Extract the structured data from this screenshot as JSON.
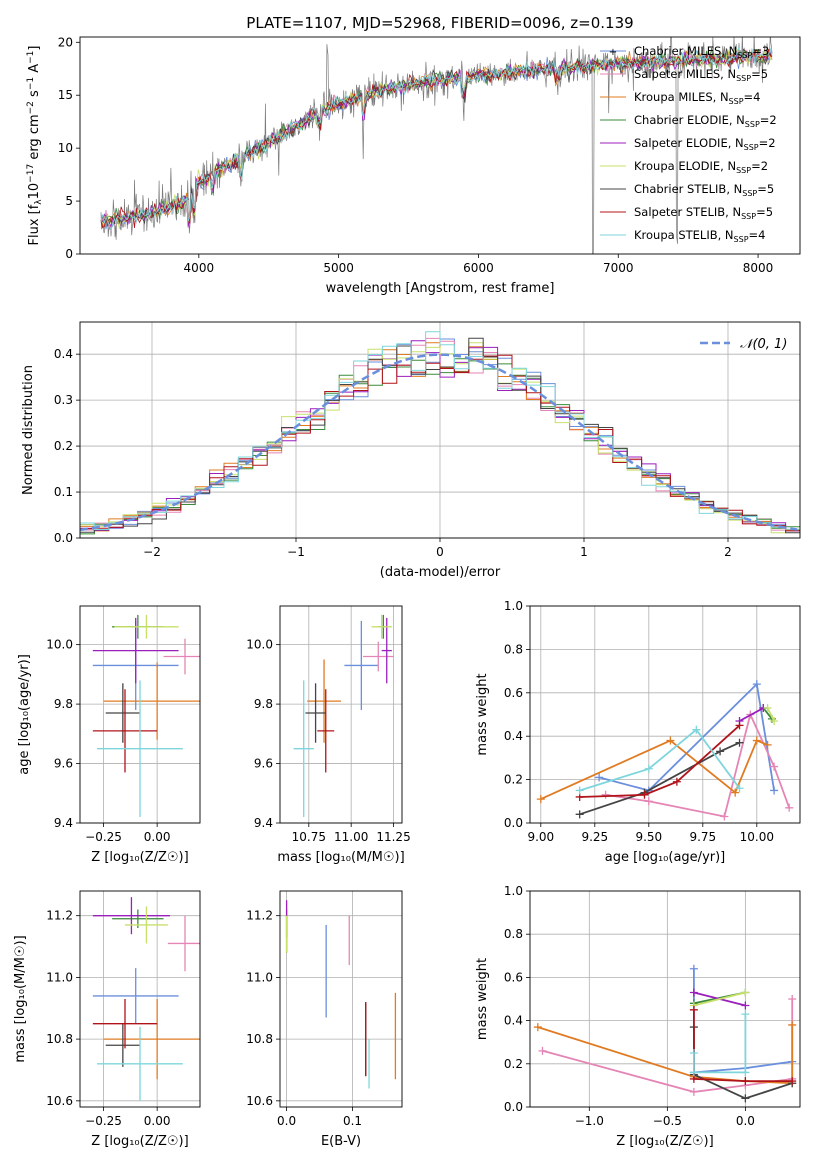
{
  "title": "PLATE=1107, MJD=52968, FIBERID=0096, z=0.139",
  "colors": {
    "c1": "#6a8fdc",
    "c2": "#e585b5",
    "c3": "#e07b22",
    "c4": "#3b8a3b",
    "c5": "#9b1fbd",
    "c6": "#c7e06a",
    "c7": "#444444",
    "c8": "#b0141a",
    "c9": "#7ed6dc"
  },
  "chart_data": [
    {
      "id": "spectrum",
      "type": "line",
      "xlabel": "wavelength [Angstrom, rest frame]",
      "ylabel_parts": [
        "Flux [f",
        "λ",
        "10",
        "−17",
        " erg cm",
        "−2",
        " s",
        "−1",
        " A",
        "−1",
        "]"
      ],
      "xlim": [
        3150,
        8300
      ],
      "ylim": [
        0,
        20.5
      ],
      "xticks": [
        4000,
        5000,
        6000,
        7000,
        8000
      ],
      "yticks": [
        0,
        5,
        10,
        15,
        20
      ],
      "continuum": [
        [
          3300,
          3.1
        ],
        [
          3600,
          3.6
        ],
        [
          3900,
          5.0
        ],
        [
          4000,
          6.8
        ],
        [
          4200,
          8.3
        ],
        [
          4500,
          10.5
        ],
        [
          4800,
          13.0
        ],
        [
          5000,
          14.2
        ],
        [
          5300,
          15.5
        ],
        [
          5600,
          16.2
        ],
        [
          6000,
          16.9
        ],
        [
          6500,
          17.5
        ],
        [
          7000,
          18.0
        ],
        [
          7500,
          18.3
        ],
        [
          8000,
          18.7
        ],
        [
          8100,
          18.8
        ]
      ],
      "legend": [
        {
          "label": "Chabrier MILES, N",
          "sub": "SSP",
          "tail": "=3",
          "color": "c1"
        },
        {
          "label": "Salpeter MILES, N",
          "sub": "SSP",
          "tail": "=5",
          "color": "c2"
        },
        {
          "label": "Kroupa MILES, N",
          "sub": "SSP",
          "tail": "=4",
          "color": "c3"
        },
        {
          "label": "Chabrier ELODIE, N",
          "sub": "SSP",
          "tail": "=2",
          "color": "c4"
        },
        {
          "label": "Salpeter ELODIE, N",
          "sub": "SSP",
          "tail": "=2",
          "color": "c5"
        },
        {
          "label": "Kroupa ELODIE, N",
          "sub": "SSP",
          "tail": "=2",
          "color": "c6"
        },
        {
          "label": "Chabrier STELIB, N",
          "sub": "SSP",
          "tail": "=5",
          "color": "c7"
        },
        {
          "label": "Salpeter STELIB, N",
          "sub": "SSP",
          "tail": "=5",
          "color": "c8"
        },
        {
          "label": "Kroupa STELIB, N",
          "sub": "SSP",
          "tail": "=4",
          "color": "c9"
        }
      ]
    },
    {
      "id": "residuals",
      "type": "histogram",
      "xlabel": "(data-model)/error",
      "ylabel": "Normed distribution",
      "xlim": [
        -2.5,
        2.5
      ],
      "ylim": [
        0,
        0.47
      ],
      "xticks": [
        -2,
        -1,
        0,
        1,
        2
      ],
      "yticks": [
        0.0,
        0.1,
        0.2,
        0.3,
        0.4
      ],
      "bin_width": 0.1,
      "series_colors": [
        "c1",
        "c2",
        "c3",
        "c4",
        "c5",
        "c6",
        "c7",
        "c8",
        "c9"
      ],
      "legend": {
        "label": "𝒩(0, 1)",
        "color": "c1"
      }
    },
    {
      "id": "age-vs-Z",
      "type": "errorbar",
      "xlabel": "Z [log₁₀(Z/Z☉)]",
      "ylabel": "age  [log₁₀(age/yr)]",
      "xlim": [
        -0.36,
        0.2
      ],
      "ylim": [
        9.4,
        10.13
      ],
      "xticks": [
        -0.25,
        0.0
      ],
      "yticks": [
        9.4,
        9.6,
        9.8,
        10.0
      ],
      "points": [
        {
          "c": "c1",
          "x": -0.1,
          "xe": 0.2,
          "y": 9.93,
          "ye": 0.15
        },
        {
          "c": "c2",
          "x": 0.13,
          "xe": 0.1,
          "y": 9.96,
          "ye": 0.06
        },
        {
          "c": "c3",
          "x": 0.0,
          "xe": 0.25,
          "y": 9.81,
          "ye": 0.13
        },
        {
          "c": "c4",
          "x": -0.09,
          "xe": 0.12,
          "y": 10.06,
          "ye": 0.04
        },
        {
          "c": "c5",
          "x": -0.1,
          "xe": 0.2,
          "y": 9.98,
          "ye": 0.11
        },
        {
          "c": "c6",
          "x": -0.05,
          "xe": 0.15,
          "y": 10.06,
          "ye": 0.04
        },
        {
          "c": "c7",
          "x": -0.16,
          "xe": 0.08,
          "y": 9.77,
          "ye": 0.1
        },
        {
          "c": "c8",
          "x": -0.15,
          "xe": 0.15,
          "y": 9.71,
          "ye": 0.14
        },
        {
          "c": "c9",
          "x": -0.08,
          "xe": 0.2,
          "y": 9.65,
          "ye": 0.23
        }
      ]
    },
    {
      "id": "age-vs-mass",
      "type": "errorbar",
      "xlabel": "mass [log₁₀(M/M☉)]",
      "ylabel": "",
      "xlim": [
        10.58,
        11.3
      ],
      "ylim": [
        9.4,
        10.13
      ],
      "xticks": [
        10.75,
        11.0,
        11.25
      ],
      "yticks": [
        9.4,
        9.6,
        9.8,
        10.0
      ],
      "points": [
        {
          "c": "c1",
          "x": 11.06,
          "xe": 0.1,
          "y": 9.93,
          "ye": 0.15
        },
        {
          "c": "c2",
          "x": 11.16,
          "xe": 0.09,
          "y": 9.96,
          "ye": 0.05
        },
        {
          "c": "c3",
          "x": 10.84,
          "xe": 0.1,
          "y": 9.81,
          "ye": 0.14
        },
        {
          "c": "c4",
          "x": 11.19,
          "xe": 0.03,
          "y": 10.06,
          "ye": 0.04
        },
        {
          "c": "c5",
          "x": 11.21,
          "xe": 0.03,
          "y": 9.98,
          "ye": 0.11
        },
        {
          "c": "c6",
          "x": 11.18,
          "xe": 0.06,
          "y": 10.06,
          "ye": 0.04
        },
        {
          "c": "c7",
          "x": 10.79,
          "xe": 0.06,
          "y": 9.77,
          "ye": 0.1
        },
        {
          "c": "c8",
          "x": 10.85,
          "xe": 0.05,
          "y": 9.71,
          "ye": 0.14
        },
        {
          "c": "c9",
          "x": 10.72,
          "xe": 0.06,
          "y": 9.65,
          "ye": 0.23
        }
      ]
    },
    {
      "id": "weight-vs-age",
      "type": "line",
      "xlabel": "age  [log₁₀(age/yr)]",
      "ylabel": "mass weight",
      "xlim": [
        8.95,
        10.2
      ],
      "ylim": [
        0,
        1.0
      ],
      "xticks": [
        9.0,
        9.25,
        9.5,
        9.75,
        10.0
      ],
      "yticks": [
        0.0,
        0.2,
        0.4,
        0.6,
        0.8,
        1.0
      ],
      "series": [
        {
          "c": "c1",
          "x": [
            9.27,
            9.5,
            10.0,
            10.08
          ],
          "y": [
            0.21,
            0.15,
            0.64,
            0.15
          ]
        },
        {
          "c": "c2",
          "x": [
            9.3,
            9.5,
            9.85,
            9.97,
            10.08,
            10.15
          ],
          "y": [
            0.13,
            0.1,
            0.03,
            0.5,
            0.26,
            0.07
          ]
        },
        {
          "c": "c3",
          "x": [
            9.0,
            9.6,
            9.9,
            10.0,
            10.05
          ],
          "y": [
            0.11,
            0.38,
            0.14,
            0.38,
            0.36
          ]
        },
        {
          "c": "c4",
          "x": [
            10.03,
            10.07
          ],
          "y": [
            0.53,
            0.48
          ]
        },
        {
          "c": "c5",
          "x": [
            9.92,
            10.03
          ],
          "y": [
            0.47,
            0.53
          ]
        },
        {
          "c": "c6",
          "x": [
            10.05,
            10.08
          ],
          "y": [
            0.53,
            0.47
          ]
        },
        {
          "c": "c7",
          "x": [
            9.18,
            9.48,
            9.83,
            9.92
          ],
          "y": [
            0.04,
            0.14,
            0.33,
            0.37
          ]
        },
        {
          "c": "c8",
          "x": [
            9.18,
            9.48,
            9.63,
            9.92
          ],
          "y": [
            0.12,
            0.13,
            0.19,
            0.45
          ]
        },
        {
          "c": "c9",
          "x": [
            9.18,
            9.5,
            9.72,
            9.92
          ],
          "y": [
            0.15,
            0.25,
            0.43,
            0.16
          ]
        }
      ]
    },
    {
      "id": "mass-vs-Z",
      "type": "errorbar",
      "xlabel": "Z [log₁₀(Z/Z☉)]",
      "ylabel": "mass [log₁₀(M/M☉)]",
      "xlim": [
        -0.36,
        0.2
      ],
      "ylim": [
        10.58,
        11.28
      ],
      "xticks": [
        -0.25,
        0.0
      ],
      "yticks": [
        10.6,
        10.8,
        11.0,
        11.2
      ],
      "points": [
        {
          "c": "c1",
          "x": -0.1,
          "xe": 0.2,
          "y": 10.94,
          "ye": 0.09
        },
        {
          "c": "c2",
          "x": 0.13,
          "xe": 0.08,
          "y": 11.11,
          "ye": 0.09
        },
        {
          "c": "c3",
          "x": 0.0,
          "xe": 0.25,
          "y": 10.8,
          "ye": 0.13
        },
        {
          "c": "c4",
          "x": -0.09,
          "xe": 0.12,
          "y": 11.19,
          "ye": 0.03
        },
        {
          "c": "c5",
          "x": -0.12,
          "xe": 0.18,
          "y": 11.2,
          "ye": 0.06
        },
        {
          "c": "c6",
          "x": -0.05,
          "xe": 0.1,
          "y": 11.17,
          "ye": 0.06
        },
        {
          "c": "c7",
          "x": -0.16,
          "xe": 0.08,
          "y": 10.78,
          "ye": 0.07
        },
        {
          "c": "c8",
          "x": -0.15,
          "xe": 0.15,
          "y": 10.85,
          "ye": 0.08
        },
        {
          "c": "c9",
          "x": -0.08,
          "xe": 0.2,
          "y": 10.72,
          "ye": 0.12
        }
      ]
    },
    {
      "id": "mass-vs-ebv",
      "type": "errorbar",
      "xlabel": "E(B-V)",
      "ylabel": "",
      "xlim": [
        -0.01,
        0.175
      ],
      "ylim": [
        10.58,
        11.28
      ],
      "xticks": [
        0.0,
        0.1
      ],
      "yticks": [
        10.6,
        10.8,
        11.0,
        11.2
      ],
      "points": [
        {
          "c": "c1",
          "x": 0.06,
          "xe": 0,
          "y": 11.02,
          "ye": 0.15
        },
        {
          "c": "c2",
          "x": 0.095,
          "xe": 0,
          "y": 11.12,
          "ye": 0.08
        },
        {
          "c": "c3",
          "x": 0.165,
          "xe": 0,
          "y": 10.81,
          "ye": 0.14
        },
        {
          "c": "c4",
          "x": 0.0,
          "xe": 0,
          "y": 11.15,
          "ye": 0.07
        },
        {
          "c": "c5",
          "x": 0.0,
          "xe": 0,
          "y": 11.19,
          "ye": 0.06
        },
        {
          "c": "c6",
          "x": 0.0,
          "xe": 0,
          "y": 11.14,
          "ye": 0.06
        },
        {
          "c": "c7",
          "x": 0.12,
          "xe": 0,
          "y": 10.8,
          "ye": 0.12
        },
        {
          "c": "c8",
          "x": 0.12,
          "xe": 0,
          "y": 10.8,
          "ye": 0.12
        },
        {
          "c": "c9",
          "x": 0.125,
          "xe": 0,
          "y": 10.72,
          "ye": 0.08
        }
      ]
    },
    {
      "id": "weight-vs-Z",
      "type": "line",
      "xlabel": "Z [log₁₀(Z/Z☉)]",
      "ylabel": "mass weight",
      "xlim": [
        -1.38,
        0.35
      ],
      "ylim": [
        0,
        1.0
      ],
      "xticks": [
        -1.0,
        -0.5,
        0.0
      ],
      "yticks": [
        0.0,
        0.2,
        0.4,
        0.6,
        0.8,
        1.0
      ],
      "series": [
        {
          "c": "c1",
          "x": [
            -0.33,
            -0.33,
            0.0,
            0.3
          ],
          "y": [
            0.64,
            0.16,
            0.18,
            0.21
          ]
        },
        {
          "c": "c2",
          "x": [
            -1.3,
            -0.33,
            0.0,
            0.3,
            0.3
          ],
          "y": [
            0.26,
            0.07,
            0.1,
            0.13,
            0.5
          ]
        },
        {
          "c": "c3",
          "x": [
            -1.33,
            -0.33,
            0.0,
            0.3,
            0.3
          ],
          "y": [
            0.37,
            0.14,
            0.12,
            0.11,
            0.38
          ]
        },
        {
          "c": "c4",
          "x": [
            -0.33,
            0.0
          ],
          "y": [
            0.48,
            0.53
          ]
        },
        {
          "c": "c5",
          "x": [
            -0.33,
            0.0
          ],
          "y": [
            0.53,
            0.47
          ]
        },
        {
          "c": "c6",
          "x": [
            -0.33,
            0.0
          ],
          "y": [
            0.47,
            0.53
          ]
        },
        {
          "c": "c7",
          "x": [
            -0.33,
            -0.33,
            0.0,
            0.3
          ],
          "y": [
            0.37,
            0.15,
            0.04,
            0.11
          ]
        },
        {
          "c": "c8",
          "x": [
            -0.33,
            -0.33,
            0.0,
            0.3
          ],
          "y": [
            0.45,
            0.13,
            0.12,
            0.12
          ]
        },
        {
          "c": "c9",
          "x": [
            -0.33,
            -0.33,
            0.0,
            0.0
          ],
          "y": [
            0.25,
            0.16,
            0.16,
            0.43
          ]
        }
      ]
    }
  ]
}
